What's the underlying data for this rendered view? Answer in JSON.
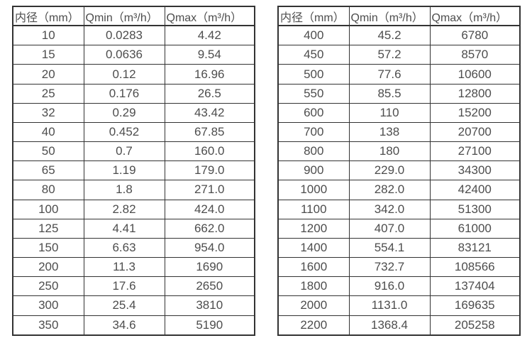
{
  "colors": {
    "background": "#ffffff",
    "border": "#333333",
    "text": "#4d4d4d"
  },
  "tables": {
    "left": {
      "headers": [
        "内径（mm）",
        "Qmin（m³/h）",
        "Qmax（m³/h）"
      ],
      "rows": [
        [
          "10",
          "0.0283",
          "4.42"
        ],
        [
          "15",
          "0.0636",
          "9.54"
        ],
        [
          "20",
          "0.12",
          "16.96"
        ],
        [
          "25",
          "0.176",
          "26.5"
        ],
        [
          "32",
          "0.29",
          "43.42"
        ],
        [
          "40",
          "0.452",
          "67.85"
        ],
        [
          "50",
          "0.7",
          "160.0"
        ],
        [
          "65",
          "1.19",
          "179.0"
        ],
        [
          "80",
          "1.8",
          "271.0"
        ],
        [
          "100",
          "2.82",
          "424.0"
        ],
        [
          "125",
          "4.41",
          "662.0"
        ],
        [
          "150",
          "6.63",
          "954.0"
        ],
        [
          "200",
          "11.3",
          "1690"
        ],
        [
          "250",
          "17.6",
          "2650"
        ],
        [
          "300",
          "25.4",
          "3810"
        ],
        [
          "350",
          "34.6",
          "5190"
        ]
      ]
    },
    "right": {
      "headers": [
        "内径（mm）",
        "Qmin（m³/h）",
        "Qmax（m³/h）"
      ],
      "rows": [
        [
          "400",
          "45.2",
          "6780"
        ],
        [
          "450",
          "57.2",
          "8570"
        ],
        [
          "500",
          "77.6",
          "10600"
        ],
        [
          "550",
          "85.5",
          "12800"
        ],
        [
          "600",
          "110",
          "15200"
        ],
        [
          "700",
          "138",
          "20700"
        ],
        [
          "800",
          "180",
          "27100"
        ],
        [
          "900",
          "229.0",
          "34300"
        ],
        [
          "1000",
          "282.0",
          "42400"
        ],
        [
          "1100",
          "342.0",
          "51300"
        ],
        [
          "1200",
          "407.0",
          "61000"
        ],
        [
          "1400",
          "554.1",
          "83121"
        ],
        [
          "1600",
          "732.7",
          "108566"
        ],
        [
          "1800",
          "916.0",
          "137404"
        ],
        [
          "2000",
          "1131.0",
          "169635"
        ],
        [
          "2200",
          "1368.4",
          "205258"
        ]
      ]
    }
  },
  "chart_data": [
    {
      "type": "table",
      "title": "",
      "columns": [
        "内径（mm）",
        "Qmin（m³/h）",
        "Qmax（m³/h）"
      ],
      "rows": [
        [
          "10",
          "0.0283",
          "4.42"
        ],
        [
          "15",
          "0.0636",
          "9.54"
        ],
        [
          "20",
          "0.12",
          "16.96"
        ],
        [
          "25",
          "0.176",
          "26.5"
        ],
        [
          "32",
          "0.29",
          "43.42"
        ],
        [
          "40",
          "0.452",
          "67.85"
        ],
        [
          "50",
          "0.7",
          "160.0"
        ],
        [
          "65",
          "1.19",
          "179.0"
        ],
        [
          "80",
          "1.8",
          "271.0"
        ],
        [
          "100",
          "2.82",
          "424.0"
        ],
        [
          "125",
          "4.41",
          "662.0"
        ],
        [
          "150",
          "6.63",
          "954.0"
        ],
        [
          "200",
          "11.3",
          "1690"
        ],
        [
          "250",
          "17.6",
          "2650"
        ],
        [
          "300",
          "25.4",
          "3810"
        ],
        [
          "350",
          "34.6",
          "5190"
        ]
      ]
    },
    {
      "type": "table",
      "title": "",
      "columns": [
        "内径（mm）",
        "Qmin（m³/h）",
        "Qmax（m³/h）"
      ],
      "rows": [
        [
          "400",
          "45.2",
          "6780"
        ],
        [
          "450",
          "57.2",
          "8570"
        ],
        [
          "500",
          "77.6",
          "10600"
        ],
        [
          "550",
          "85.5",
          "12800"
        ],
        [
          "600",
          "110",
          "15200"
        ],
        [
          "700",
          "138",
          "20700"
        ],
        [
          "800",
          "180",
          "27100"
        ],
        [
          "900",
          "229.0",
          "34300"
        ],
        [
          "1000",
          "282.0",
          "42400"
        ],
        [
          "1100",
          "342.0",
          "51300"
        ],
        [
          "1200",
          "407.0",
          "61000"
        ],
        [
          "1400",
          "554.1",
          "83121"
        ],
        [
          "1600",
          "732.7",
          "108566"
        ],
        [
          "1800",
          "916.0",
          "137404"
        ],
        [
          "2000",
          "1131.0",
          "169635"
        ],
        [
          "2200",
          "1368.4",
          "205258"
        ]
      ]
    }
  ]
}
